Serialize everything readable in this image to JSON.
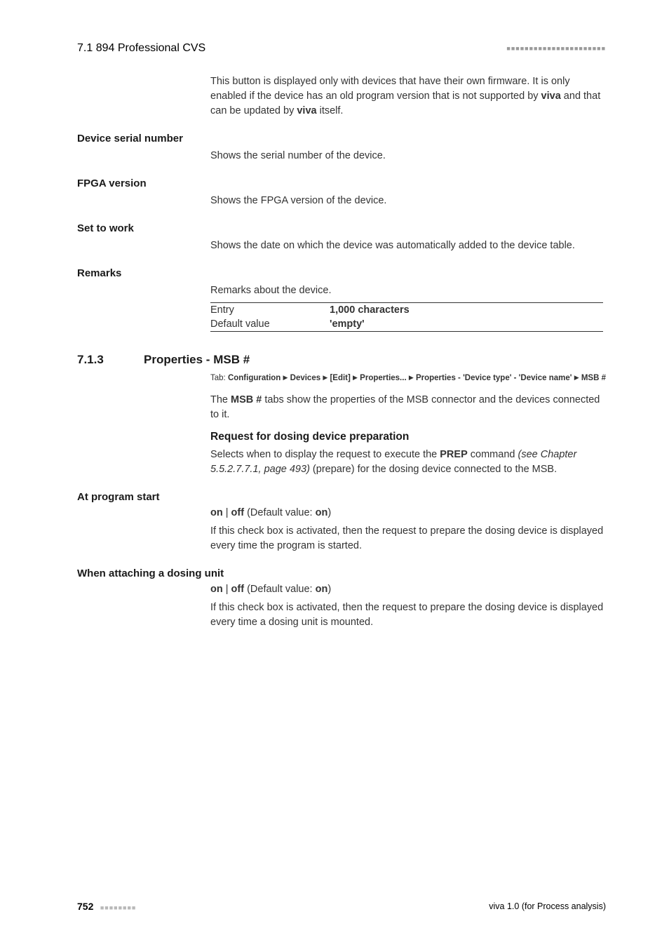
{
  "header": {
    "left": "7.1 894 Professional CVS",
    "dots": "■■■■■■■■■■■■■■■■■■■■■■"
  },
  "intro_paragraph": {
    "pre": "This button is displayed only with devices that have their own firmware. It is only enabled if the device has an old program version that is not supported by ",
    "b1": "viva",
    "mid": " and that can be updated by ",
    "b2": "viva",
    "post": " itself."
  },
  "fields": {
    "serial": {
      "label": "Device serial number",
      "desc": "Shows the serial number of the device."
    },
    "fpga": {
      "label": "FPGA version",
      "desc": "Shows the FPGA version of the device."
    },
    "setwork": {
      "label": "Set to work",
      "desc": "Shows the date on which the device was automatically added to the device table."
    },
    "remarks": {
      "label": "Remarks",
      "desc": "Remarks about the device.",
      "entry_label": "Entry",
      "entry_value": "1,000 characters",
      "default_label": "Default value",
      "default_value": "'empty'"
    }
  },
  "section": {
    "num": "7.1.3",
    "title": "Properties - MSB #",
    "tab_prefix": "Tab: ",
    "tab_parts": {
      "p1": "Configuration",
      "p2": "Devices",
      "p3": "[Edit]",
      "p4": "Properties...",
      "p5": "Properties - 'Device type' - 'Device name'",
      "p6": "MSB #"
    },
    "desc_pre": "The ",
    "desc_b": "MSB #",
    "desc_post": " tabs show the properties of the MSB connector and the devices connected to it.",
    "subheading": "Request for dosing device preparation",
    "req_pre": "Selects when to display the request to execute the ",
    "req_b": "PREP",
    "req_mid": " command ",
    "req_i": "(see Chapter 5.5.2.7.7.1, page 493)",
    "req_post": " (prepare) for the dosing device connected to the MSB."
  },
  "atstart": {
    "label": "At program start",
    "on": "on",
    "sep": " | ",
    "off": "off",
    "dv_pre": " (Default value: ",
    "dv": "on",
    "dv_post": ")",
    "desc": "If this check box is activated, then the request to prepare the dosing device is displayed every time the program is started."
  },
  "attach": {
    "label": "When attaching a dosing unit",
    "on": "on",
    "sep": " | ",
    "off": "off",
    "dv_pre": " (Default value: ",
    "dv": "on",
    "dv_post": ")",
    "desc": "If this check box is activated, then the request to prepare the dosing device is displayed every time a dosing unit is mounted."
  },
  "footer": {
    "page": "752",
    "dots": "■■■■■■■■",
    "right": "viva 1.0 (for Process analysis)"
  }
}
